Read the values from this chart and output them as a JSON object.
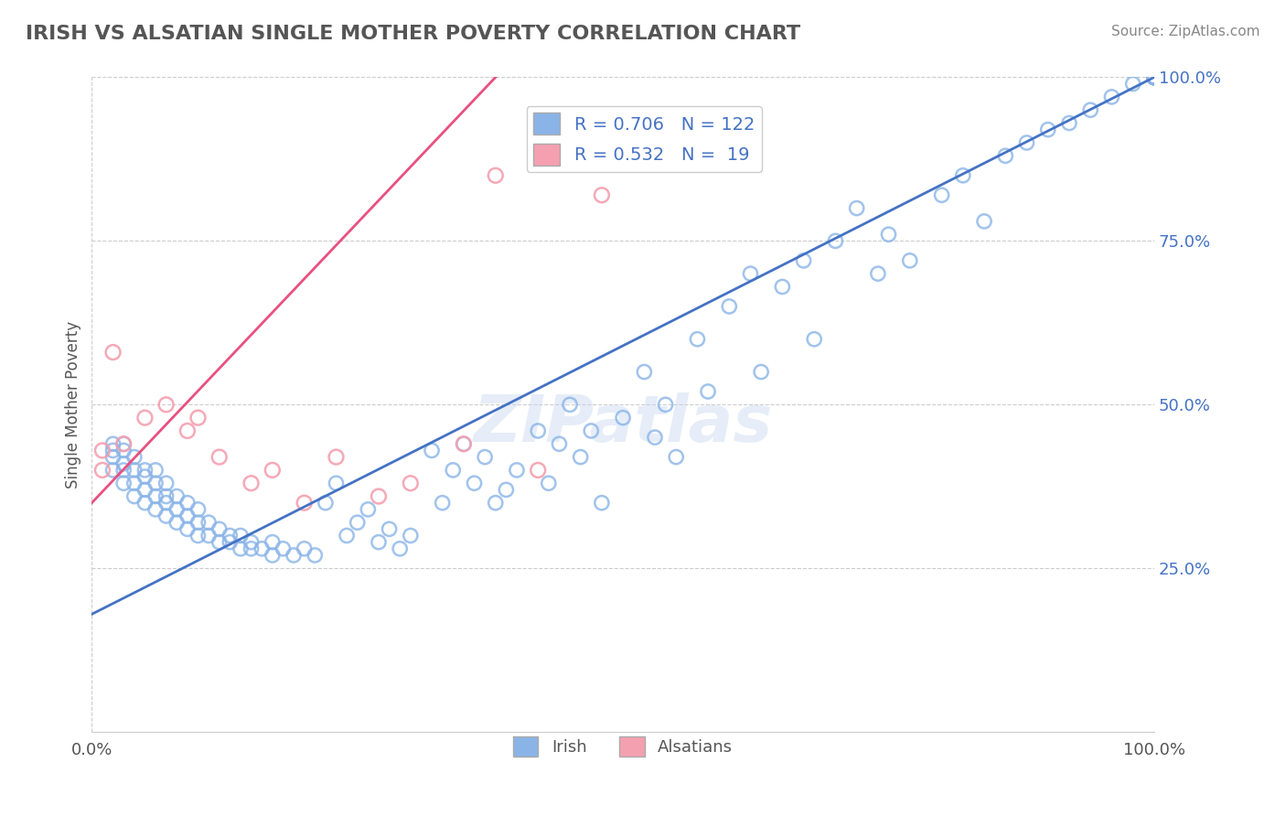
{
  "title": "IRISH VS ALSATIAN SINGLE MOTHER POVERTY CORRELATION CHART",
  "source_text": "Source: ZipAtlas.com",
  "xlabel": "",
  "ylabel": "Single Mother Poverty",
  "watermark": "ZIPatlas",
  "legend_irish_r": "0.706",
  "legend_irish_n": "122",
  "legend_alsatian_r": "0.532",
  "legend_alsatian_n": "19",
  "irish_color": "#8ab4e8",
  "alsatian_color": "#f4a0b0",
  "irish_line_color": "#4472c4",
  "alsatian_line_color": "#e85080",
  "right_tick_color": "#4472c4",
  "title_color": "#555555",
  "background_color": "#ffffff",
  "irish_scatter_x": [
    0.02,
    0.02,
    0.02,
    0.02,
    0.03,
    0.03,
    0.03,
    0.03,
    0.03,
    0.04,
    0.04,
    0.04,
    0.04,
    0.05,
    0.05,
    0.05,
    0.05,
    0.06,
    0.06,
    0.06,
    0.06,
    0.07,
    0.07,
    0.07,
    0.07,
    0.08,
    0.08,
    0.08,
    0.09,
    0.09,
    0.09,
    0.1,
    0.1,
    0.1,
    0.11,
    0.11,
    0.12,
    0.12,
    0.13,
    0.13,
    0.14,
    0.14,
    0.15,
    0.15,
    0.16,
    0.17,
    0.17,
    0.18,
    0.19,
    0.2,
    0.21,
    0.22,
    0.23,
    0.24,
    0.25,
    0.26,
    0.27,
    0.28,
    0.29,
    0.3,
    0.32,
    0.33,
    0.34,
    0.35,
    0.36,
    0.37,
    0.38,
    0.39,
    0.4,
    0.42,
    0.43,
    0.44,
    0.45,
    0.46,
    0.47,
    0.48,
    0.5,
    0.52,
    0.53,
    0.54,
    0.55,
    0.57,
    0.58,
    0.6,
    0.62,
    0.63,
    0.65,
    0.67,
    0.68,
    0.7,
    0.72,
    0.74,
    0.75,
    0.77,
    0.8,
    0.82,
    0.84,
    0.86,
    0.88,
    0.9,
    0.92,
    0.94,
    0.96,
    0.98,
    1.0,
    1.0,
    1.0,
    1.0,
    1.0,
    1.0,
    1.0,
    1.0,
    1.0,
    1.0,
    1.0,
    1.0,
    1.0,
    1.0,
    1.0,
    1.0,
    1.0,
    1.0
  ],
  "irish_scatter_y": [
    0.4,
    0.42,
    0.43,
    0.44,
    0.38,
    0.4,
    0.41,
    0.43,
    0.44,
    0.36,
    0.38,
    0.4,
    0.42,
    0.35,
    0.37,
    0.39,
    0.4,
    0.34,
    0.36,
    0.38,
    0.4,
    0.33,
    0.35,
    0.36,
    0.38,
    0.32,
    0.34,
    0.36,
    0.31,
    0.33,
    0.35,
    0.3,
    0.32,
    0.34,
    0.3,
    0.32,
    0.29,
    0.31,
    0.29,
    0.3,
    0.28,
    0.3,
    0.28,
    0.29,
    0.28,
    0.27,
    0.29,
    0.28,
    0.27,
    0.28,
    0.27,
    0.35,
    0.38,
    0.3,
    0.32,
    0.34,
    0.29,
    0.31,
    0.28,
    0.3,
    0.43,
    0.35,
    0.4,
    0.44,
    0.38,
    0.42,
    0.35,
    0.37,
    0.4,
    0.46,
    0.38,
    0.44,
    0.5,
    0.42,
    0.46,
    0.35,
    0.48,
    0.55,
    0.45,
    0.5,
    0.42,
    0.6,
    0.52,
    0.65,
    0.7,
    0.55,
    0.68,
    0.72,
    0.6,
    0.75,
    0.8,
    0.7,
    0.76,
    0.72,
    0.82,
    0.85,
    0.78,
    0.88,
    0.9,
    0.92,
    0.93,
    0.95,
    0.97,
    0.99,
    1.0,
    1.0,
    1.0,
    1.0,
    1.0,
    1.0,
    1.0,
    1.0,
    1.0,
    1.0,
    1.0,
    1.0,
    1.0,
    1.0,
    1.0,
    1.0,
    1.0,
    1.0
  ],
  "alsatian_scatter_x": [
    0.01,
    0.01,
    0.02,
    0.03,
    0.05,
    0.07,
    0.09,
    0.1,
    0.12,
    0.15,
    0.17,
    0.2,
    0.23,
    0.27,
    0.3,
    0.35,
    0.38,
    0.42,
    0.48
  ],
  "alsatian_scatter_y": [
    0.4,
    0.43,
    0.58,
    0.44,
    0.48,
    0.5,
    0.46,
    0.48,
    0.42,
    0.38,
    0.4,
    0.35,
    0.42,
    0.36,
    0.38,
    0.44,
    0.85,
    0.4,
    0.82
  ],
  "irish_line_x0": 0.0,
  "irish_line_y0": 0.18,
  "irish_line_x1": 1.0,
  "irish_line_y1": 1.0,
  "alsatian_line_x0": 0.0,
  "alsatian_line_y0": 0.35,
  "alsatian_line_x1": 0.38,
  "alsatian_line_y1": 1.0,
  "xlim": [
    0.0,
    1.0
  ],
  "ylim": [
    0.0,
    1.0
  ],
  "xtick_labels": [
    "0.0%",
    "100.0%"
  ],
  "ytick_labels_right": [
    "25.0%",
    "50.0%",
    "75.0%",
    "100.0%"
  ],
  "ytick_vals_right": [
    0.25,
    0.5,
    0.75,
    1.0
  ]
}
